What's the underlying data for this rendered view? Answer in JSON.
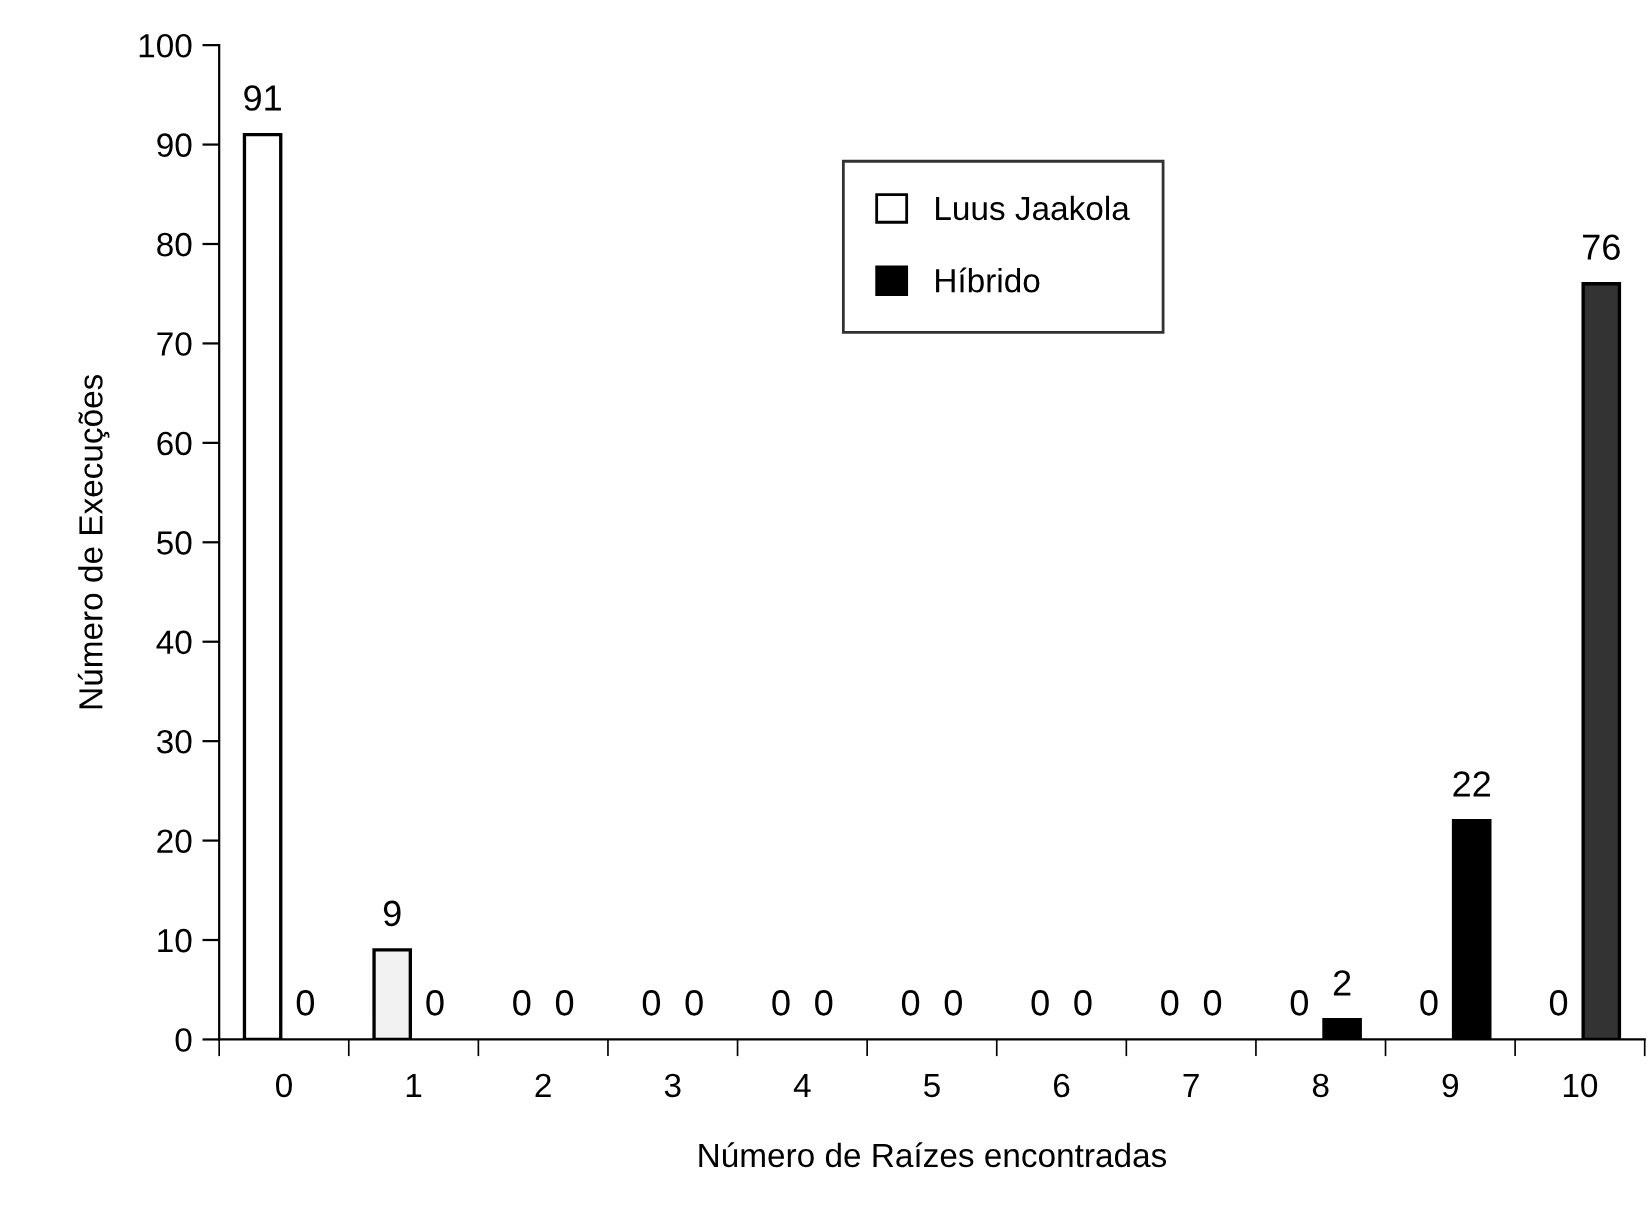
{
  "chart_data": {
    "type": "bar",
    "xlabel": "Número de Raízes encontradas",
    "ylabel": "Número de Execuções",
    "categories": [
      "0",
      "1",
      "2",
      "3",
      "4",
      "5",
      "6",
      "7",
      "8",
      "9",
      "10"
    ],
    "series": [
      {
        "name": "Luus Jaakola",
        "color": "#ffffff",
        "colors": [
          "#ffffff",
          "#f2f2f2",
          "#ffffff",
          "#ffffff",
          "#ffffff",
          "#ffffff",
          "#ffffff",
          "#ffffff",
          "#ffffff",
          "#ffffff",
          "#ffffff"
        ],
        "values": [
          91,
          9,
          0,
          0,
          0,
          0,
          0,
          0,
          0,
          0,
          0
        ]
      },
      {
        "name": "Híbrido",
        "color": "#000000",
        "colors": [
          "#000000",
          "#000000",
          "#000000",
          "#000000",
          "#000000",
          "#000000",
          "#000000",
          "#000000",
          "#000000",
          "#000000",
          "#333333"
        ],
        "values": [
          0,
          0,
          0,
          0,
          0,
          0,
          0,
          0,
          2,
          22,
          76
        ]
      }
    ],
    "ylim": [
      0,
      100
    ],
    "yticks": [
      0,
      10,
      20,
      30,
      40,
      50,
      60,
      70,
      80,
      90,
      100
    ],
    "grid": false,
    "legend": "top",
    "data_labels": true
  }
}
